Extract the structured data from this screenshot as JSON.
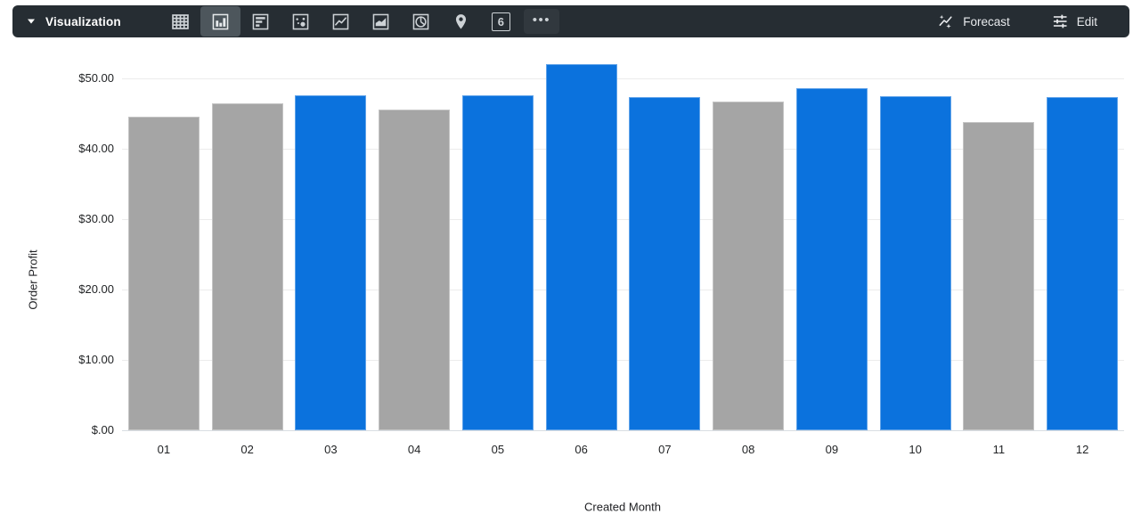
{
  "toolbar": {
    "title": "Visualization",
    "selected_viz": "column",
    "viz_types": [
      {
        "name": "table"
      },
      {
        "name": "column"
      },
      {
        "name": "bar"
      },
      {
        "name": "scatter"
      },
      {
        "name": "line"
      },
      {
        "name": "area"
      },
      {
        "name": "pie"
      },
      {
        "name": "map"
      },
      {
        "name": "single-value"
      },
      {
        "name": "more"
      }
    ],
    "single_value_glyph": "6",
    "forecast_label": "Forecast",
    "edit_label": "Edit",
    "colors": {
      "toolbar_bg": "#262d33",
      "selected_bg": "#4d565c",
      "icon": "#cdd2d6"
    }
  },
  "chart_data": {
    "type": "bar",
    "title": "",
    "xlabel": "Created Month",
    "ylabel": "Order Profit",
    "categories": [
      "01",
      "02",
      "03",
      "04",
      "05",
      "06",
      "07",
      "08",
      "09",
      "10",
      "11",
      "12"
    ],
    "values": [
      44.5,
      46.4,
      47.6,
      45.5,
      47.6,
      52.0,
      47.3,
      46.7,
      48.6,
      47.4,
      43.7,
      47.3
    ],
    "bar_colors": [
      "gray",
      "gray",
      "blue",
      "gray",
      "blue",
      "blue",
      "blue",
      "gray",
      "blue",
      "blue",
      "gray",
      "blue"
    ],
    "colors": {
      "blue": "#0b72dd",
      "gray": "#a5a5a5"
    },
    "y_tick_labels": [
      "$.00",
      "$10.00",
      "$20.00",
      "$30.00",
      "$40.00",
      "$50.00"
    ],
    "y_tick_values": [
      0,
      10,
      20,
      30,
      40,
      50
    ],
    "ylim": [
      0,
      53.5
    ],
    "grid": true,
    "legend": "none"
  }
}
